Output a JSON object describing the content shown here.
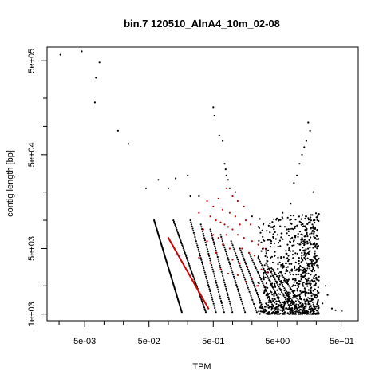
{
  "chart_data": {
    "type": "scatter",
    "title": "bin.7 120510_AlnA4_10m_02-08",
    "xlabel": "TPM",
    "ylabel": "contig length [bp]",
    "x_scale": "log10",
    "y_scale": "log10",
    "xlim": [
      0.0013,
      90
    ],
    "ylim": [
      850,
      700000
    ],
    "x_ticks": [
      {
        "value": 0.005,
        "label": "5e-03"
      },
      {
        "value": 0.05,
        "label": "5e-02"
      },
      {
        "value": 0.5,
        "label": "5e-01"
      },
      {
        "value": 5,
        "label": "5e+00"
      },
      {
        "value": 50,
        "label": "5e+01"
      }
    ],
    "x_minor_ticks": [
      0.002,
      0.01,
      0.02,
      0.1,
      0.2,
      1,
      2,
      10,
      20
    ],
    "y_ticks": [
      {
        "value": 1000,
        "label": "1e+03"
      },
      {
        "value": 5000,
        "label": "5e+03"
      },
      {
        "value": 50000,
        "label": "5e+04"
      },
      {
        "value": 500000,
        "label": "5e+05"
      }
    ],
    "y_minor_ticks": [
      2000,
      10000,
      20000,
      100000,
      200000
    ],
    "series": [
      {
        "color": "#000000",
        "points": [
          [
            0.0021,
            580000
          ],
          [
            0.0045,
            630000
          ],
          [
            0.0075,
            330000
          ],
          [
            0.0085,
            480000
          ],
          [
            0.0072,
            180000
          ],
          [
            0.0165,
            90000
          ],
          [
            0.024,
            65000
          ],
          [
            0.045,
            22000
          ],
          [
            0.07,
            27000
          ],
          [
            0.1,
            22000
          ],
          [
            0.13,
            28000
          ],
          [
            0.2,
            30000
          ],
          [
            0.22,
            18000
          ],
          [
            0.3,
            18000
          ],
          [
            0.5,
            160000
          ],
          [
            0.52,
            130000
          ],
          [
            0.62,
            80000
          ],
          [
            0.7,
            70000
          ],
          [
            0.75,
            40000
          ],
          [
            0.78,
            35000
          ],
          [
            0.8,
            30000
          ],
          [
            0.85,
            27000
          ],
          [
            0.9,
            22000
          ],
          [
            1.1,
            20000
          ],
          [
            2,
            11000
          ],
          [
            3,
            9000
          ],
          [
            5,
            7000
          ],
          [
            8,
            15000
          ],
          [
            12,
            50000
          ],
          [
            14,
            70000
          ],
          [
            16,
            90000
          ],
          [
            15,
            110000
          ],
          [
            13,
            60000
          ],
          [
            11,
            40000
          ],
          [
            10,
            30000
          ],
          [
            9,
            25000
          ],
          [
            18,
            20000
          ],
          [
            6,
            12000
          ],
          [
            7,
            8000
          ],
          [
            4,
            6000
          ],
          [
            20,
            1200
          ],
          [
            35,
            1150
          ],
          [
            50,
            1080
          ],
          [
            40,
            1100
          ],
          [
            25,
            1300
          ],
          [
            30,
            1600
          ],
          [
            22,
            2500
          ],
          [
            28,
            2000
          ]
        ]
      },
      {
        "color": "#cc0000",
        "points": [
          [
            0.8,
            22000
          ],
          [
            1.0,
            18000
          ],
          [
            1.2,
            16000
          ],
          [
            0.6,
            17000
          ],
          [
            0.4,
            16000
          ],
          [
            0.5,
            14000
          ],
          [
            1.5,
            14000
          ],
          [
            0.7,
            13000
          ],
          [
            0.9,
            12000
          ],
          [
            1.1,
            11000
          ],
          [
            0.3,
            12000
          ],
          [
            0.45,
            11000
          ],
          [
            0.55,
            10000
          ],
          [
            0.65,
            9500
          ],
          [
            0.75,
            9000
          ],
          [
            0.85,
            8500
          ],
          [
            1.3,
            9000
          ],
          [
            1.6,
            10000
          ],
          [
            1.9,
            9000
          ],
          [
            1.0,
            8000
          ],
          [
            0.35,
            8000
          ],
          [
            0.5,
            7000
          ],
          [
            0.4,
            6000
          ],
          [
            0.6,
            6500
          ],
          [
            0.8,
            7000
          ],
          [
            1.2,
            7000
          ],
          [
            1.5,
            6500
          ],
          [
            2.0,
            6000
          ],
          [
            2.5,
            5500
          ],
          [
            3.0,
            5000
          ],
          [
            0.7,
            5500
          ],
          [
            0.9,
            5000
          ],
          [
            1.4,
            5000
          ],
          [
            1.8,
            4500
          ],
          [
            2.2,
            4200
          ],
          [
            0.55,
            4500
          ],
          [
            0.3,
            4000
          ],
          [
            0.45,
            3500
          ],
          [
            1.0,
            3800
          ],
          [
            1.3,
            3500
          ],
          [
            1.7,
            3200
          ],
          [
            2.8,
            3000
          ],
          [
            3.5,
            2800
          ],
          [
            0.65,
            3000
          ],
          [
            0.85,
            2700
          ],
          [
            1.2,
            2600
          ],
          [
            2.0,
            2400
          ],
          [
            1.6,
            2200
          ],
          [
            2.4,
            2000
          ]
        ]
      }
    ],
    "diagonal_bands": {
      "color": "#000000",
      "anchors": [
        {
          "x": 0.06,
          "y": 10000,
          "dx": 2.7,
          "n": 80
        },
        {
          "x": 0.12,
          "y": 10000,
          "dx": 3.2,
          "n": 60
        },
        {
          "x": 0.22,
          "y": 10000,
          "dx": 2.5,
          "n": 45
        },
        {
          "x": 0.32,
          "y": 9000,
          "dx": 2.3,
          "n": 40
        },
        {
          "x": 0.45,
          "y": 8000,
          "dx": 2.2,
          "n": 40
        },
        {
          "x": 0.65,
          "y": 7000,
          "dx": 2.4,
          "n": 38
        },
        {
          "x": 0.95,
          "y": 6000,
          "dx": 2.5,
          "n": 36
        },
        {
          "x": 1.3,
          "y": 5000,
          "dx": 2.4,
          "n": 34
        },
        {
          "x": 1.8,
          "y": 4500,
          "dx": 2.6,
          "n": 32
        },
        {
          "x": 2.5,
          "y": 4000,
          "dx": 2.6,
          "n": 30
        },
        {
          "x": 3.3,
          "y": 3500,
          "dx": 2.6,
          "n": 28
        },
        {
          "x": 4.2,
          "y": 3000,
          "dx": 2.6,
          "n": 26
        },
        {
          "x": 5.5,
          "y": 2800,
          "dx": 2.5,
          "n": 24
        }
      ]
    },
    "red_band": {
      "color": "#cc0000",
      "from": [
        0.1,
        6500
      ],
      "to": [
        0.42,
        1150
      ],
      "n": 70
    },
    "cloud": {
      "color": "#000000",
      "x_range": [
        2.5,
        22
      ],
      "y_range": [
        1000,
        12000
      ],
      "n": 900
    },
    "grid": false,
    "legend": "none"
  }
}
